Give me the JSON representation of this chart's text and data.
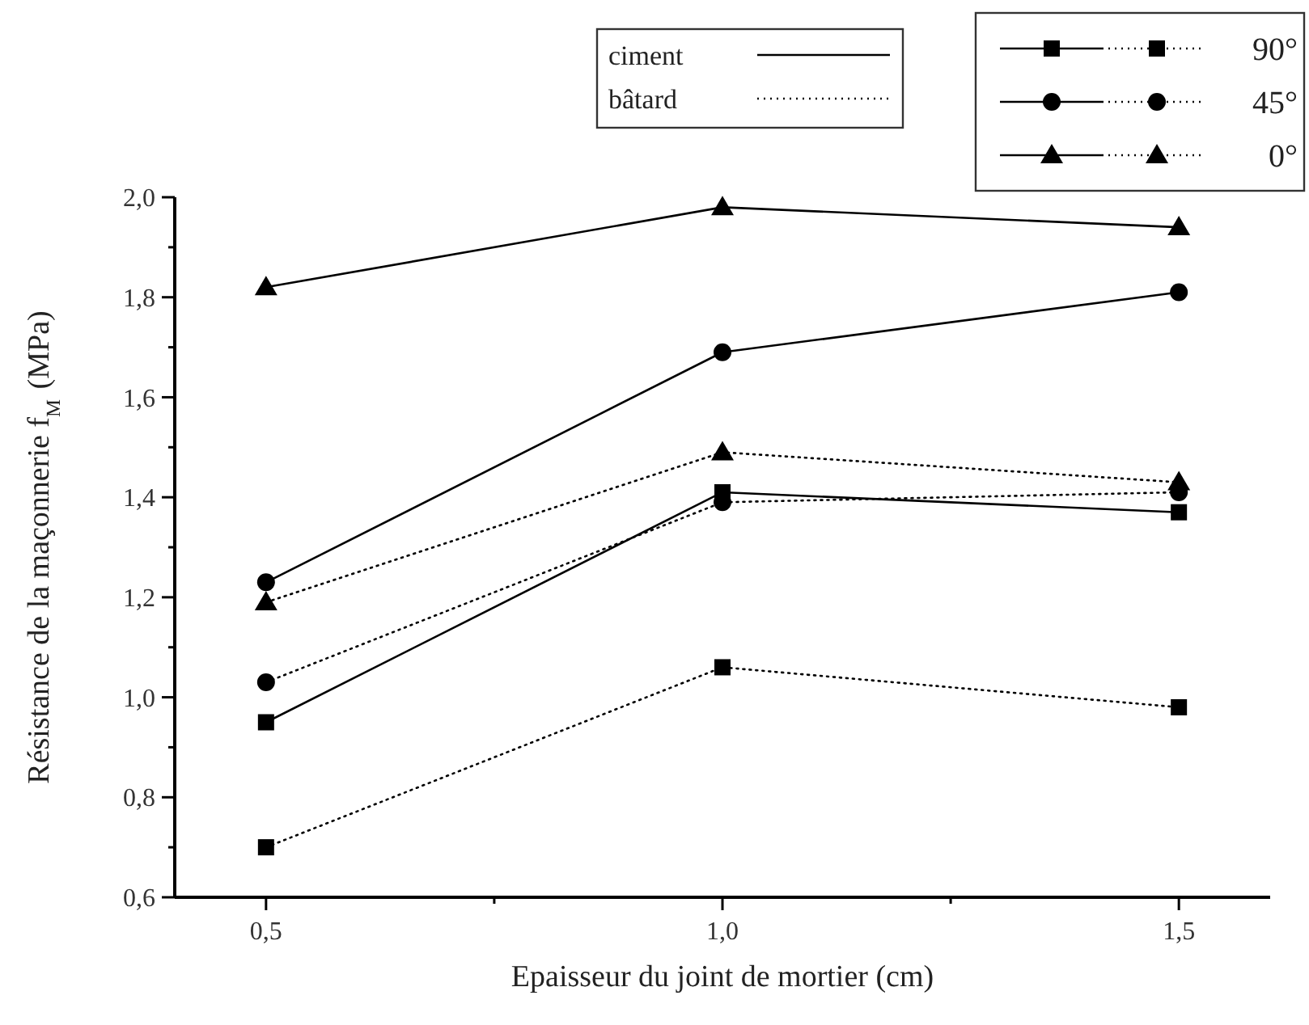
{
  "chart_data": {
    "type": "line",
    "xlabel": "Epaisseur du joint de mortier (cm)",
    "ylabel": "Résistance de la maçonnerie f$_{M}$ (MPa)",
    "x": [
      0.5,
      1.0,
      1.5
    ],
    "xlim": [
      0.4,
      1.6
    ],
    "xticks": [
      {
        "value": 0.5,
        "label": "0,5"
      },
      {
        "value": 0.75,
        "label": null
      },
      {
        "value": 1.0,
        "label": "1,0"
      },
      {
        "value": 1.25,
        "label": null
      },
      {
        "value": 1.5,
        "label": "1,5"
      }
    ],
    "ylim": [
      0.6,
      2.0
    ],
    "yticks": [
      {
        "value": 0.6,
        "label": "0,6"
      },
      {
        "value": 0.7,
        "label": null
      },
      {
        "value": 0.8,
        "label": "0,8"
      },
      {
        "value": 0.9,
        "label": null
      },
      {
        "value": 1.0,
        "label": "1,0"
      },
      {
        "value": 1.1,
        "label": null
      },
      {
        "value": 1.2,
        "label": "1,2"
      },
      {
        "value": 1.3,
        "label": null
      },
      {
        "value": 1.4,
        "label": "1,4"
      },
      {
        "value": 1.5,
        "label": null
      },
      {
        "value": 1.6,
        "label": "1,6"
      },
      {
        "value": 1.7,
        "label": null
      },
      {
        "value": 1.8,
        "label": "1,8"
      },
      {
        "value": 1.9,
        "label": null
      },
      {
        "value": 2.0,
        "label": "2,0"
      }
    ],
    "grid": false,
    "annotations": [
      "ciment",
      "bâtard",
      "90°",
      "45°",
      "0°"
    ],
    "series": [
      {
        "color": "#000000",
        "marker": "square",
        "line_style": "solid",
        "values": [
          0.95,
          1.41,
          1.37
        ]
      },
      {
        "color": "#000000",
        "marker": "square",
        "line_style": "dotted",
        "values": [
          0.7,
          1.06,
          0.98
        ]
      },
      {
        "color": "#000000",
        "marker": "circle",
        "line_style": "solid",
        "values": [
          1.23,
          1.69,
          1.81
        ]
      },
      {
        "color": "#000000",
        "marker": "circle",
        "line_style": "dotted",
        "values": [
          1.03,
          1.39,
          1.41
        ]
      },
      {
        "color": "#000000",
        "marker": "triangle",
        "line_style": "solid",
        "values": [
          1.82,
          1.98,
          1.94
        ]
      },
      {
        "color": "#000000",
        "marker": "triangle",
        "line_style": "dotted",
        "values": [
          1.19,
          1.49,
          1.43
        ]
      }
    ]
  }
}
